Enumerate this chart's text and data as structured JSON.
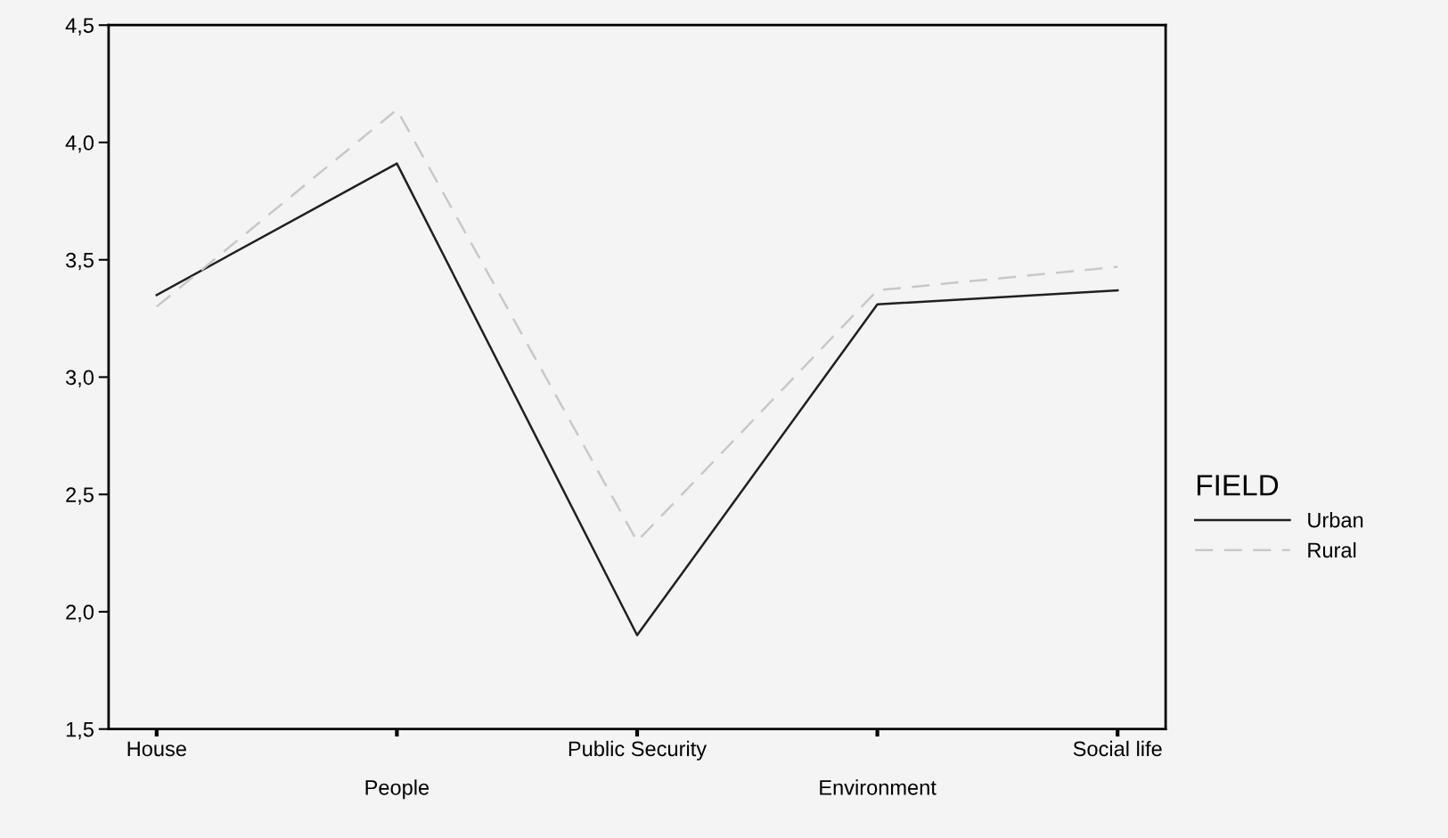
{
  "chart_data": {
    "type": "line",
    "categories": [
      "House",
      "People",
      "Public Security",
      "Environment",
      "Social life"
    ],
    "series": [
      {
        "name": "Urban",
        "color": "#202020",
        "line_style": "solid",
        "values": [
          3.35,
          3.91,
          1.9,
          3.31,
          3.37
        ]
      },
      {
        "name": "Rural",
        "color": "#c8c8c8",
        "line_style": "dashed",
        "values": [
          3.3,
          4.14,
          2.3,
          3.37,
          3.47
        ]
      }
    ],
    "ylim": [
      1.5,
      4.5
    ],
    "yticks": [
      {
        "value": 1.5,
        "label": "1,5"
      },
      {
        "value": 2.0,
        "label": "2,0"
      },
      {
        "value": 2.5,
        "label": "2,5"
      },
      {
        "value": 3.0,
        "label": "3,0"
      },
      {
        "value": 3.5,
        "label": "3,5"
      },
      {
        "value": 4.0,
        "label": "4,0"
      },
      {
        "value": 4.5,
        "label": "4,5"
      }
    ],
    "legend": "right",
    "legend_title": "FIELD",
    "grid": false,
    "marker": "none"
  }
}
